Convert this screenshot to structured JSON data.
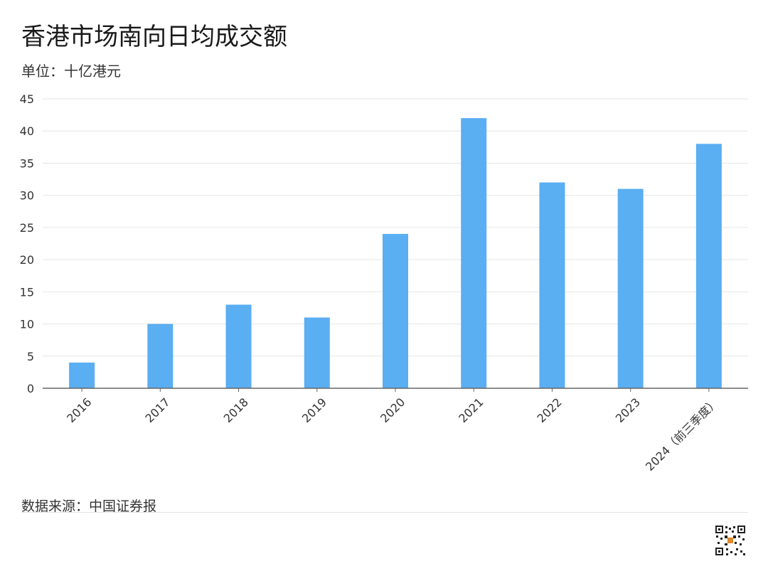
{
  "header": {
    "title": "香港市场南向日均成交额",
    "subtitle": "单位：十亿港元"
  },
  "footer": {
    "source": "数据来源：中国证券报"
  },
  "colors": {
    "bar": "#5aaef2",
    "grid": "#e6e6e6",
    "axis": "#666666",
    "text": "#333333"
  },
  "chart_data": {
    "type": "bar",
    "title": "香港市场南向日均成交额",
    "subtitle": "单位：十亿港元",
    "xlabel": "",
    "ylabel": "",
    "categories": [
      "2016",
      "2017",
      "2018",
      "2019",
      "2020",
      "2021",
      "2022",
      "2023",
      "2024（前三季度）"
    ],
    "values": [
      4,
      10,
      13,
      11,
      24,
      42,
      32,
      31,
      38
    ],
    "ylim": [
      0,
      45
    ],
    "yticks": [
      0,
      5,
      10,
      15,
      20,
      25,
      30,
      35,
      40,
      45
    ],
    "grid": true,
    "legend": "none"
  }
}
